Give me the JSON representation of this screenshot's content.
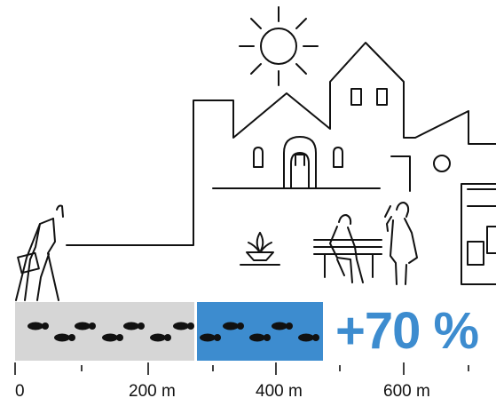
{
  "headline_increase": "+70 %",
  "colors": {
    "extra_distance_band": "#3d8ccf",
    "baseline_band": "#d6d6d6",
    "line_art": "#111111"
  },
  "distance_axis": {
    "ticks": [
      "0",
      "200 m",
      "400 m",
      "600 m"
    ]
  },
  "illustration": {
    "icons": [
      "sun-icon",
      "house-icon",
      "townhall-icon",
      "tall-building-icon",
      "walking-person-icon",
      "fountain-icon",
      "bench-person-icon",
      "standing-person-icon",
      "footprints-icon"
    ]
  }
}
